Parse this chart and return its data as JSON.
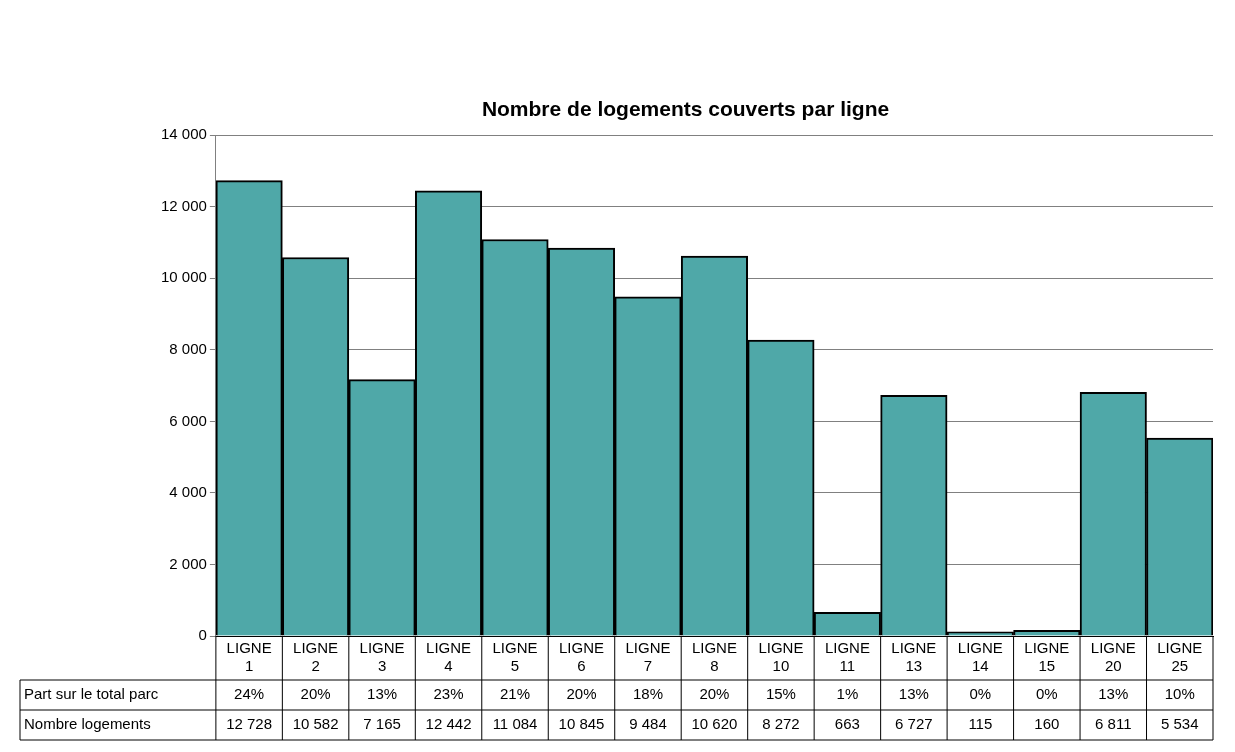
{
  "chart_data": {
    "type": "bar",
    "title": "Nombre de logements couverts par ligne",
    "categories": [
      "LIGNE 1",
      "LIGNE 2",
      "LIGNE 3",
      "LIGNE 4",
      "LIGNE 5",
      "LIGNE 6",
      "LIGNE 7",
      "LIGNE 8",
      "LIGNE 10",
      "LIGNE 11",
      "LIGNE 13",
      "LIGNE 14",
      "LIGNE 15",
      "LIGNE 20",
      "LIGNE 25"
    ],
    "series": [
      {
        "name": "Nombre logements",
        "color": "#4fa8a8",
        "values": [
          12728,
          10582,
          7165,
          12442,
          11084,
          10845,
          9484,
          10620,
          8272,
          663,
          6727,
          115,
          160,
          6811,
          5534
        ]
      }
    ],
    "ylim": [
      0,
      14000
    ],
    "yticks": [
      0,
      2000,
      4000,
      6000,
      8000,
      10000,
      12000,
      14000
    ],
    "grid": "y",
    "legend": false,
    "data_labels": true,
    "annotations": [
      "Part sur le total parc",
      "24%",
      "20%",
      "13%",
      "23%",
      "21%",
      "20%",
      "18%",
      "20%",
      "15%",
      "1%",
      "13%",
      "0%",
      "0%",
      "13%",
      "10%"
    ]
  }
}
